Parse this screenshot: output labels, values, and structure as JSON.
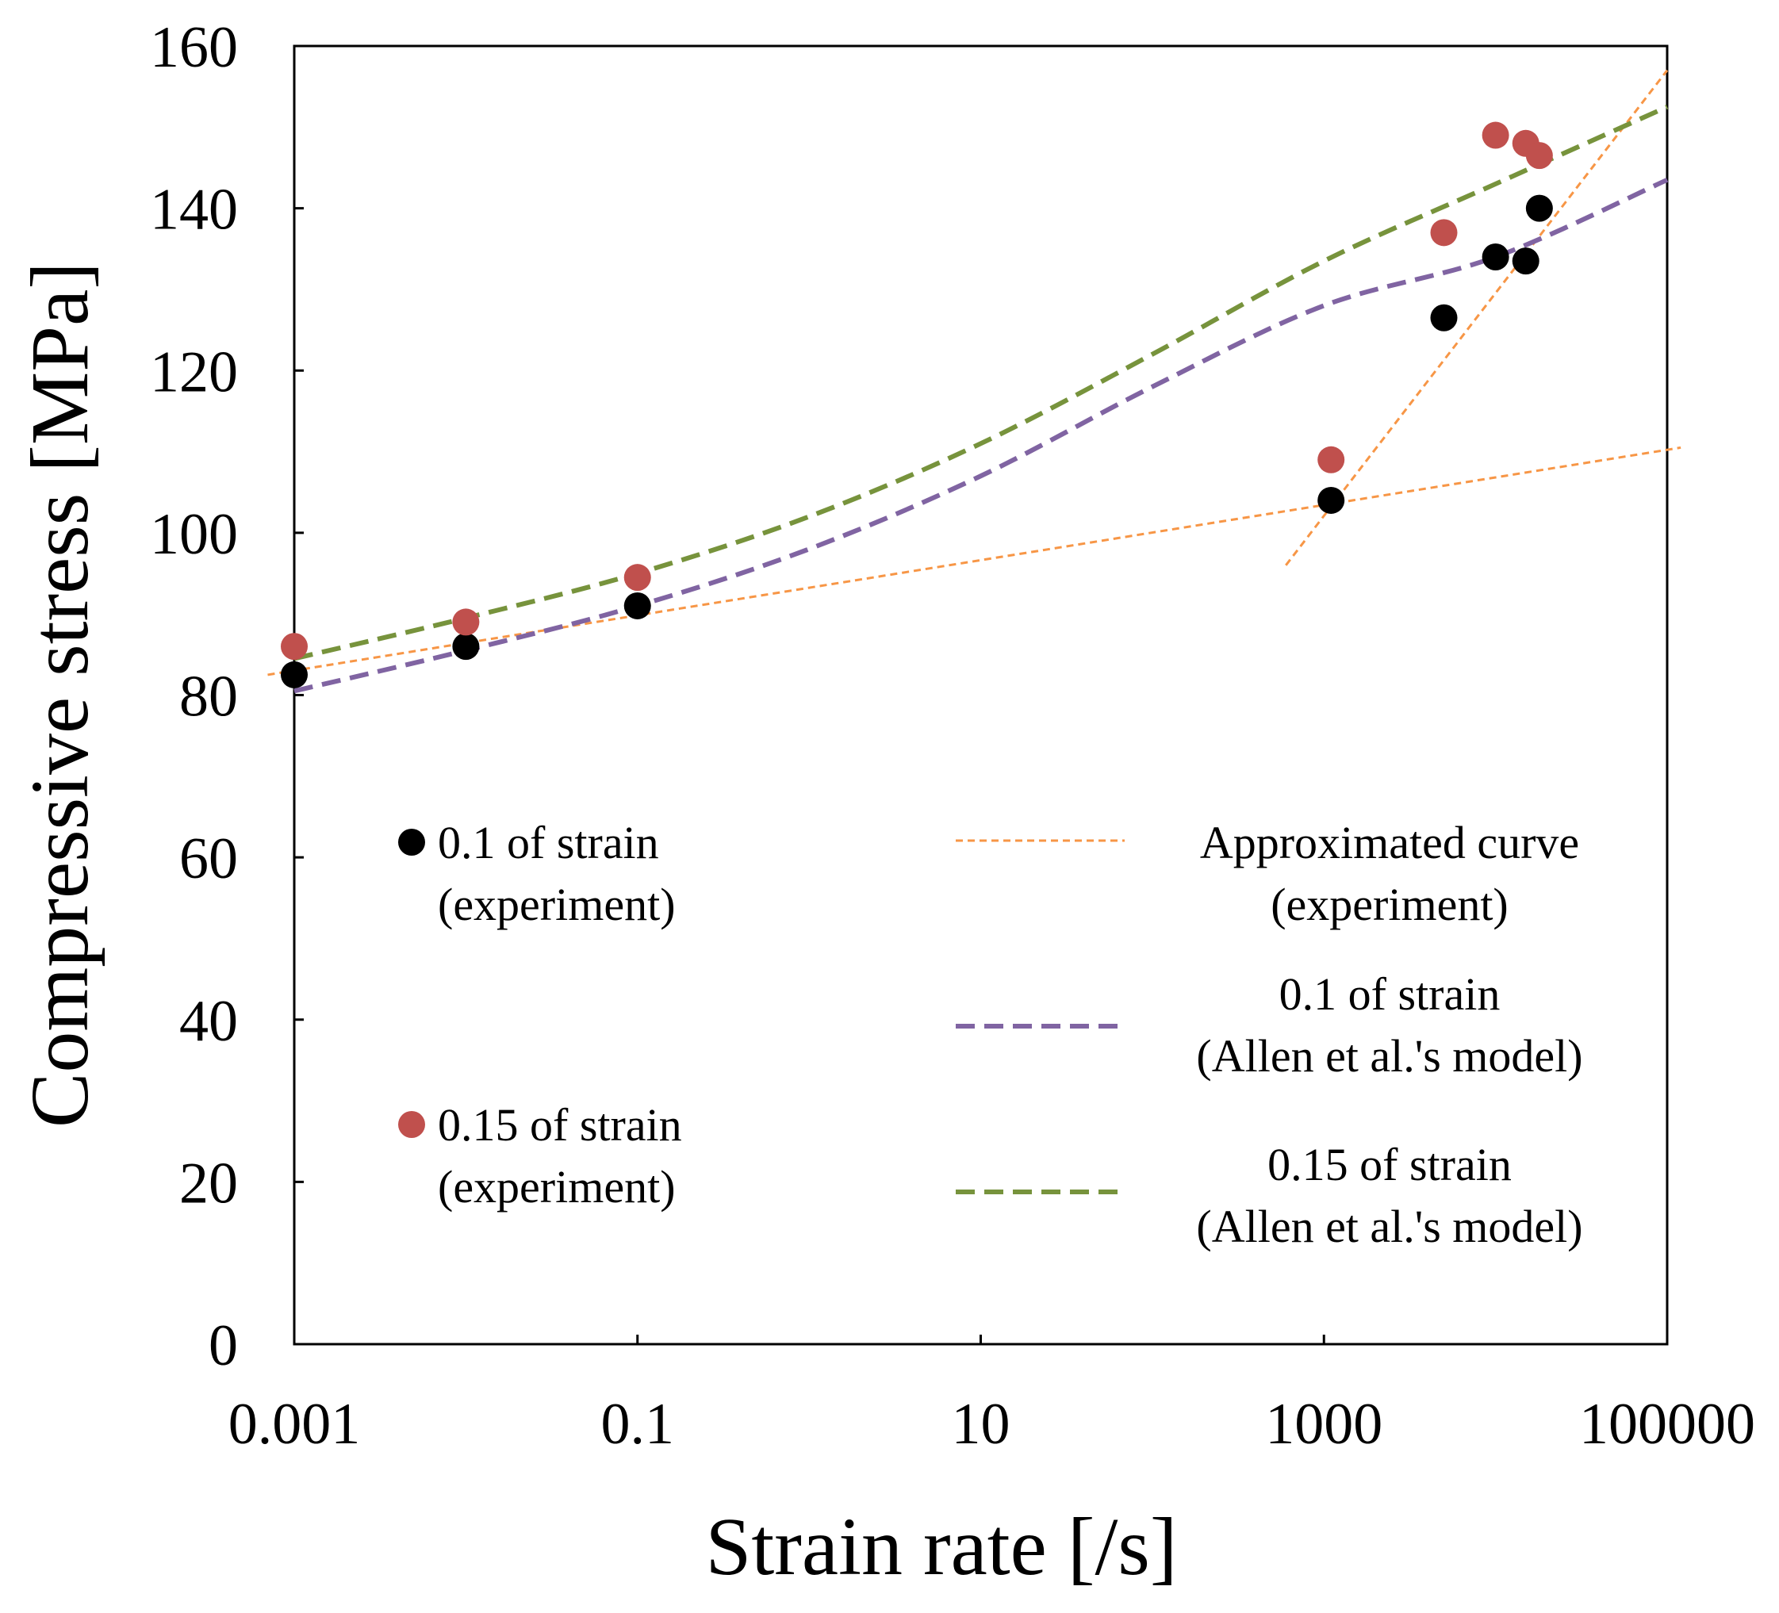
{
  "chart_data": {
    "type": "scatter",
    "title": "",
    "xlabel": "Strain rate [/s]",
    "ylabel": "Compressive stress [MPa]",
    "x_scale": "log",
    "xlim": [
      0.001,
      100000
    ],
    "ylim": [
      0,
      160
    ],
    "x_ticks": [
      0.001,
      0.1,
      10,
      1000,
      100000
    ],
    "x_tick_labels": [
      "0.001",
      "0.1",
      "10",
      "1000",
      "100000"
    ],
    "y_ticks": [
      0,
      20,
      40,
      60,
      80,
      100,
      120,
      140,
      160
    ],
    "y_tick_labels": [
      "0",
      "20",
      "40",
      "60",
      "80",
      "100",
      "120",
      "140",
      "160"
    ],
    "grid": false,
    "series": [
      {
        "name": "0.1 of strain (experiment)",
        "kind": "scatter",
        "color": "#000000",
        "x": [
          0.001,
          0.01,
          0.1,
          1100,
          5000,
          10000,
          15000,
          18000
        ],
        "y": [
          82.5,
          86,
          91,
          104,
          126.5,
          134,
          133.5,
          140
        ]
      },
      {
        "name": "0.15 of strain (experiment)",
        "kind": "scatter",
        "color": "#c0504d",
        "x": [
          0.001,
          0.01,
          0.1,
          1100,
          5000,
          10000,
          15000,
          18000
        ],
        "y": [
          86,
          89,
          94.5,
          109,
          137,
          149,
          148,
          146.5
        ]
      },
      {
        "name": "Approximated curve (experiment)",
        "kind": "line",
        "style": "dotted",
        "color": "#f79646",
        "segments": [
          {
            "x": [
              0.0007,
              120000
            ],
            "y": [
              82.5,
              110.5
            ]
          },
          {
            "x": [
              600,
              100000
            ],
            "y": [
              96,
              157
            ]
          }
        ]
      },
      {
        "name": "0.1 of strain (Allen et al.'s model)",
        "kind": "line",
        "style": "dashed",
        "color": "#8064a2",
        "x": [
          0.001,
          0.01,
          0.1,
          1,
          10,
          100,
          1000,
          10000,
          100000
        ],
        "y": [
          80.5,
          85.5,
          91,
          98,
          107,
          118,
          128,
          134,
          143.5
        ]
      },
      {
        "name": "0.15 of strain (Allen et al.'s model)",
        "kind": "line",
        "style": "dashed",
        "color": "#77933c",
        "x": [
          0.001,
          0.01,
          0.1,
          1,
          10,
          100,
          1000,
          10000,
          100000
        ],
        "y": [
          84.5,
          89.5,
          95,
          102,
          111,
          122,
          133.5,
          143,
          152.5
        ]
      }
    ],
    "legend": {
      "placement": "inside-lower",
      "entries": [
        {
          "text_lines": [
            "0.1 of strain",
            "(experiment)"
          ],
          "marker": "dot",
          "color": "#000000"
        },
        {
          "text_lines": [
            "0.15 of strain",
            "(experiment)"
          ],
          "marker": "dot",
          "color": "#c0504d"
        },
        {
          "text_lines": [
            "Approximated curve",
            "(experiment)"
          ],
          "marker": "dotted-line",
          "color": "#f79646"
        },
        {
          "text_lines": [
            "0.1 of strain",
            "(Allen et al.'s model)"
          ],
          "marker": "dashed-line",
          "color": "#8064a2"
        },
        {
          "text_lines": [
            "0.15 of strain",
            "(Allen et al.'s model)"
          ],
          "marker": "dashed-line",
          "color": "#77933c"
        }
      ]
    }
  }
}
